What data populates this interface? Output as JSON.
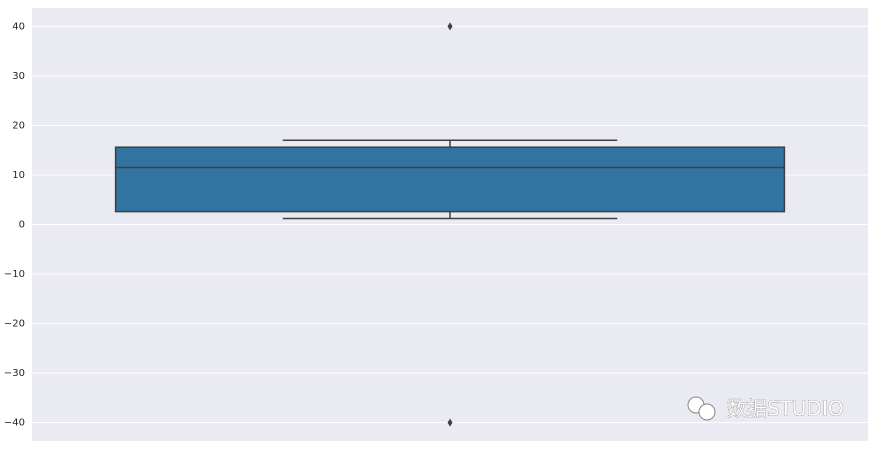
{
  "chart_data": {
    "type": "box",
    "boxes": [
      {
        "whislo": 1.2,
        "q1": 2.6,
        "med": 11.5,
        "q3": 15.6,
        "whishi": 17.0,
        "fliers": [
          40,
          -40
        ]
      }
    ],
    "color": "#3274a1",
    "edge_color": "#3f3f3f",
    "background": "#eaeaf2",
    "ylim": [
      -43.7,
      43.7
    ],
    "yticks": [
      {
        "value": -40,
        "label": "−40"
      },
      {
        "value": -30,
        "label": "−30"
      },
      {
        "value": -20,
        "label": "−20"
      },
      {
        "value": -10,
        "label": "−10"
      },
      0,
      10,
      20,
      30,
      40
    ],
    "grid": true
  },
  "watermark": "数据STUDIO"
}
